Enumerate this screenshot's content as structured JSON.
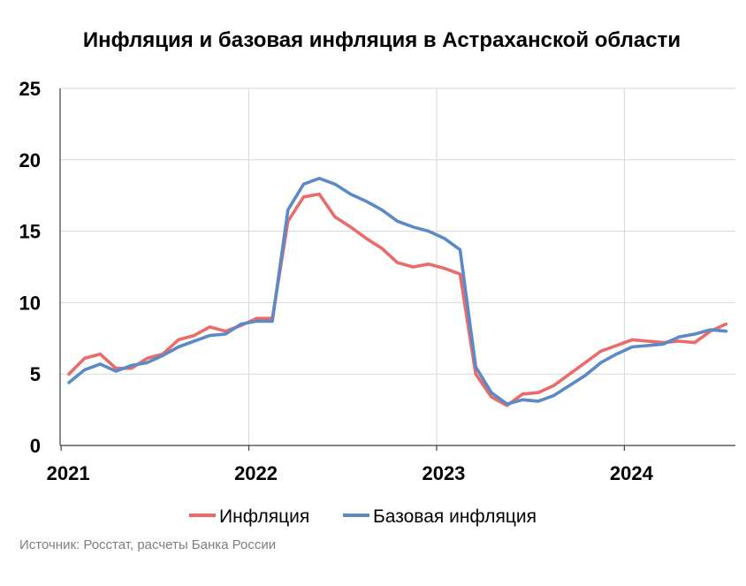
{
  "chart_data": {
    "type": "line",
    "title": "Инфляция и базовая инфляция в Астраханской области",
    "source": "Источник: Росстат, расчеты Банка России",
    "xlabel": "",
    "ylabel": "",
    "ylim": [
      0,
      25
    ],
    "yticks": [
      "0",
      "5",
      "10",
      "15",
      "20",
      "25"
    ],
    "x_ticks": [
      "2021",
      "2022",
      "2023",
      "2024"
    ],
    "grid": true,
    "legend_position": "bottom",
    "x": [
      "2021-01",
      "2021-02",
      "2021-03",
      "2021-04",
      "2021-05",
      "2021-06",
      "2021-07",
      "2021-08",
      "2021-09",
      "2021-10",
      "2021-11",
      "2021-12",
      "2022-01",
      "2022-02",
      "2022-03",
      "2022-04",
      "2022-05",
      "2022-06",
      "2022-07",
      "2022-08",
      "2022-09",
      "2022-10",
      "2022-11",
      "2022-12",
      "2023-01",
      "2023-02",
      "2023-03",
      "2023-04",
      "2023-05",
      "2023-06",
      "2023-07",
      "2023-08",
      "2023-09",
      "2023-10",
      "2023-11",
      "2023-12",
      "2024-01",
      "2024-02",
      "2024-03",
      "2024-04",
      "2024-05",
      "2024-06",
      "2024-07"
    ],
    "series": [
      {
        "name": "Инфляция",
        "color": "#eb6a6a",
        "values": [
          5.0,
          6.1,
          6.4,
          5.4,
          5.4,
          6.1,
          6.4,
          7.4,
          7.7,
          8.3,
          8.0,
          8.4,
          8.9,
          8.9,
          15.7,
          17.4,
          17.6,
          16.0,
          15.3,
          14.5,
          13.8,
          12.8,
          12.5,
          12.7,
          12.4,
          12.0,
          5.0,
          3.4,
          2.8,
          3.6,
          3.7,
          4.2,
          5.0,
          5.8,
          6.6,
          7.0,
          7.4,
          7.3,
          7.2,
          7.3,
          7.2,
          8.0,
          8.5
        ]
      },
      {
        "name": "Базовая инфляция",
        "color": "#5b8ac6",
        "values": [
          4.4,
          5.3,
          5.7,
          5.2,
          5.6,
          5.8,
          6.3,
          6.9,
          7.3,
          7.7,
          7.8,
          8.5,
          8.7,
          8.7,
          16.5,
          18.3,
          18.7,
          18.3,
          17.6,
          17.1,
          16.5,
          15.7,
          15.3,
          15.0,
          14.5,
          13.7,
          5.5,
          3.7,
          2.9,
          3.2,
          3.1,
          3.5,
          4.2,
          4.9,
          5.8,
          6.4,
          6.9,
          7.0,
          7.1,
          7.6,
          7.8,
          8.1,
          8.0
        ]
      }
    ]
  }
}
